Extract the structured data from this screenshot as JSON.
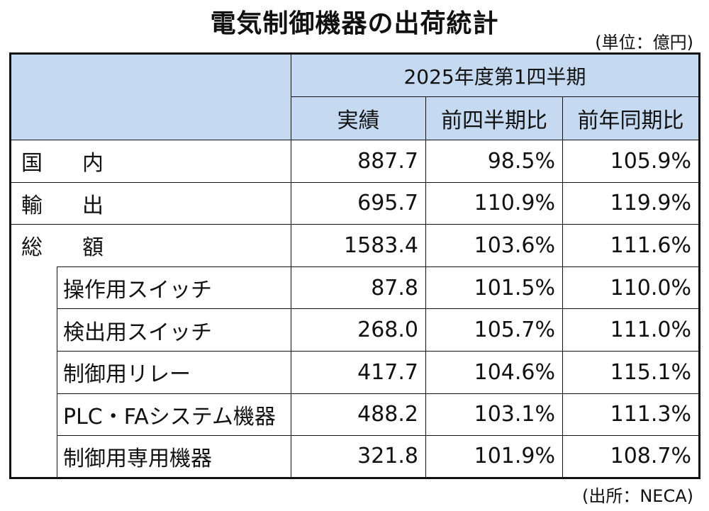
{
  "title": "電気制御機器の出荷統計",
  "unit": "(単位：億円)",
  "source": "(出所：NECA)",
  "table": {
    "period": "2025年度第1四半期",
    "columns": [
      "実績",
      "前四半期比",
      "前年同期比"
    ],
    "main_rows": [
      {
        "label_a": "国",
        "label_b": "内",
        "actual": "887.7",
        "qoq": "98.5%",
        "yoy": "105.9%"
      },
      {
        "label_a": "輸",
        "label_b": "出",
        "actual": "695.7",
        "qoq": "110.9%",
        "yoy": "119.9%"
      },
      {
        "label_a": "総",
        "label_b": "額",
        "actual": "1583.4",
        "qoq": "103.6%",
        "yoy": "111.6%"
      }
    ],
    "sub_rows": [
      {
        "label": "操作用スイッチ",
        "actual": "87.8",
        "qoq": "101.5%",
        "yoy": "110.0%"
      },
      {
        "label": "検出用スイッチ",
        "actual": "268.0",
        "qoq": "105.7%",
        "yoy": "111.0%"
      },
      {
        "label": "制御用リレー",
        "actual": "417.7",
        "qoq": "104.6%",
        "yoy": "115.1%"
      },
      {
        "label": "PLC・FAシステム機器",
        "actual": "488.2",
        "qoq": "103.1%",
        "yoy": "111.3%"
      },
      {
        "label": "制御用専用機器",
        "actual": "321.8",
        "qoq": "101.9%",
        "yoy": "108.7%"
      }
    ]
  }
}
